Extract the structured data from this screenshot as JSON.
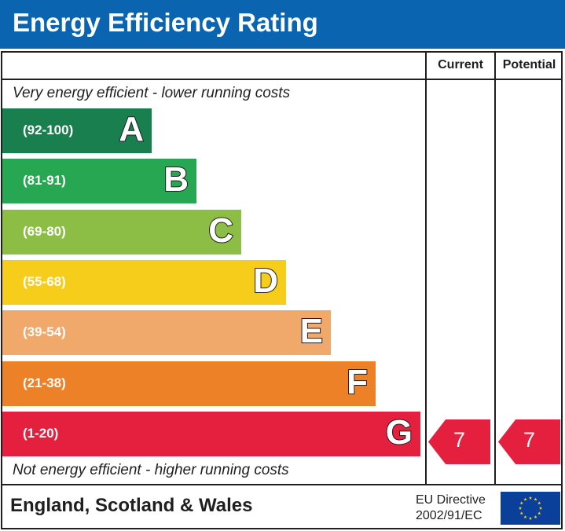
{
  "header": {
    "title": "Energy Efficiency Rating"
  },
  "columns": {
    "current": "Current",
    "potential": "Potential"
  },
  "notes": {
    "top": "Very energy efficient - lower running costs",
    "bottom": "Not energy efficient - higher running costs"
  },
  "chart_data": {
    "type": "bar",
    "title": "Energy Efficiency Rating",
    "bands": [
      {
        "letter": "A",
        "range": "(92-100)",
        "color": "#1a7f4f"
      },
      {
        "letter": "B",
        "range": "(81-91)",
        "color": "#27a751"
      },
      {
        "letter": "C",
        "range": "(69-80)",
        "color": "#8cbd44"
      },
      {
        "letter": "D",
        "range": "(55-68)",
        "color": "#f6cd1a"
      },
      {
        "letter": "E",
        "range": "(39-54)",
        "color": "#f0a86b"
      },
      {
        "letter": "F",
        "range": "(21-38)",
        "color": "#ec8128"
      },
      {
        "letter": "G",
        "range": "(1-20)",
        "color": "#e4203e"
      }
    ],
    "current": {
      "value": "7",
      "band": "G"
    },
    "potential": {
      "value": "7",
      "band": "G"
    }
  },
  "footer": {
    "country": "England, Scotland & Wales",
    "directive_line1": "EU Directive",
    "directive_line2": "2002/91/EC",
    "flag_icon": "eu-flag-icon"
  }
}
